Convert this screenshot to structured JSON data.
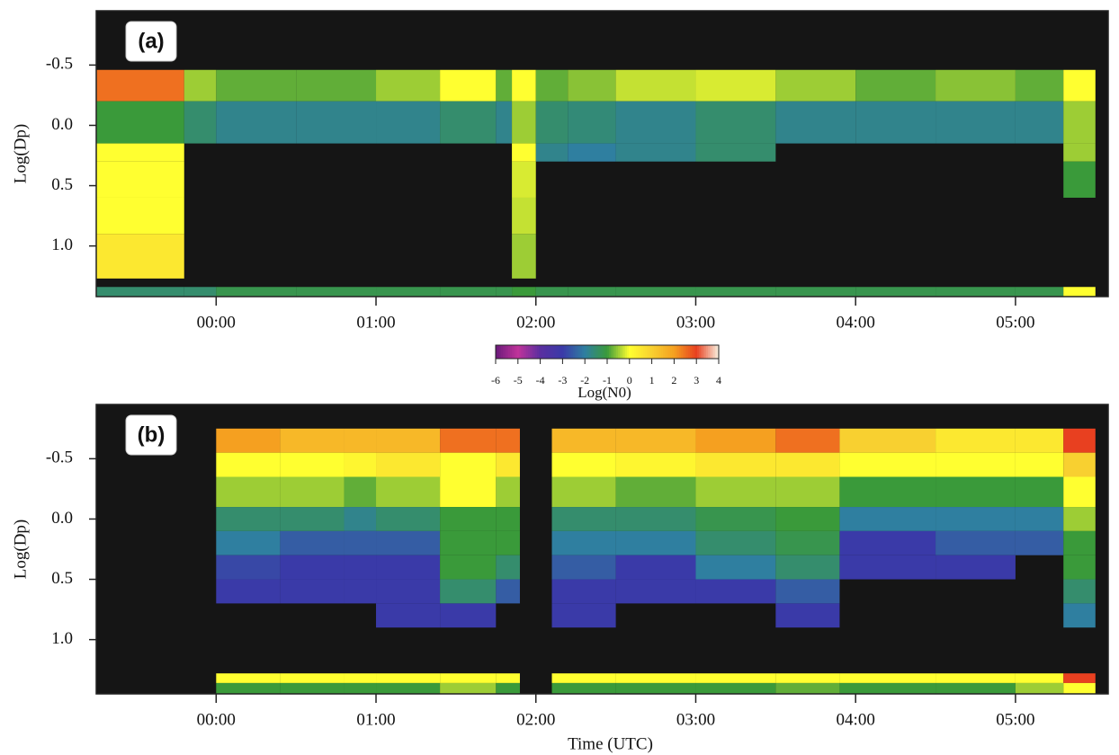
{
  "chart_data": [
    {
      "type": "heatmap",
      "panel_label": "(a)",
      "ylabel": "Log(Dp)",
      "inverted_y": true,
      "xlim": [
        -0.75,
        5.58
      ],
      "ylim": [
        -0.95,
        1.42
      ],
      "xticks": [
        {
          "value": 0,
          "label": "00:00"
        },
        {
          "value": 1,
          "label": "01:00"
        },
        {
          "value": 2,
          "label": "02:00"
        },
        {
          "value": 3,
          "label": "03:00"
        },
        {
          "value": 4,
          "label": "04:00"
        },
        {
          "value": 5,
          "label": "05:00"
        }
      ],
      "yticks": [
        -0.5,
        {
          "value": 0,
          "label": "0.0"
        },
        0.5,
        {
          "value": 1,
          "label": "1.0"
        }
      ],
      "x": [
        -0.75,
        -0.2,
        0.0,
        0.5,
        1.0,
        1.4,
        1.75,
        1.85,
        2.0,
        2.2,
        2.5,
        3.0,
        3.5,
        4.0,
        4.5,
        5.0,
        5.3,
        5.5
      ],
      "y": [
        -0.46,
        -0.2,
        0.15,
        0.3,
        0.6,
        0.9,
        1.27,
        1.34,
        1.42
      ],
      "z": [
        [
          2.5,
          -1,
          0,
          0,
          0,
          0.5,
          null,
          -1.5
        ],
        [
          -0.5,
          -1.5,
          null,
          null,
          null,
          null,
          null,
          -1.5
        ],
        [
          -0.8,
          -1.8,
          null,
          null,
          null,
          null,
          null,
          -1.2
        ],
        [
          -0.8,
          -1.8,
          null,
          null,
          null,
          null,
          null,
          -1.2
        ],
        [
          -0.5,
          -1.8,
          null,
          null,
          null,
          null,
          null,
          -1.2
        ],
        [
          0,
          -1.5,
          null,
          null,
          null,
          null,
          null,
          -1.2
        ],
        [
          -0.8,
          -1.8,
          null,
          null,
          null,
          null,
          null,
          -1.2
        ],
        [
          0,
          -0.5,
          0,
          -0.2,
          -0.3,
          -0.5,
          null,
          -1
        ],
        [
          -0.8,
          -1.5,
          -1.8,
          null,
          null,
          null,
          null,
          -1.2
        ],
        [
          -0.6,
          -1.6,
          -2,
          null,
          null,
          null,
          null,
          -1.2
        ],
        [
          -0.3,
          -1.8,
          -1.8,
          null,
          null,
          null,
          null,
          -1.2
        ],
        [
          -0.2,
          -1.5,
          -1.5,
          null,
          null,
          null,
          null,
          -1.2
        ],
        [
          -0.5,
          -1.8,
          null,
          null,
          null,
          null,
          null,
          -1.2
        ],
        [
          -0.8,
          -1.8,
          null,
          null,
          null,
          null,
          null,
          -1.2
        ],
        [
          -0.6,
          -1.8,
          null,
          null,
          null,
          null,
          null,
          -1.2
        ],
        [
          -0.8,
          -1.8,
          null,
          null,
          null,
          null,
          null,
          -1.2
        ],
        [
          0,
          -0.5,
          -0.5,
          -1,
          null,
          null,
          null,
          0
        ]
      ],
      "clim": [
        -6,
        4
      ],
      "colormap": [
        "#6a1a7a",
        "#c0339a",
        "#5a2fa0",
        "#3a3aa8",
        "#2f7fa0",
        "#3a9a3a",
        "#ffff30",
        "#f8d030",
        "#f5a020",
        "#e84020",
        "#f8f0e0"
      ],
      "colorbar_label": "Log(N0)",
      "cticks": [
        -6,
        -5,
        -4,
        -3,
        -2,
        -1,
        0,
        1,
        2,
        3,
        4
      ]
    },
    {
      "type": "heatmap",
      "panel_label": "(b)",
      "ylabel": "Log(Dp)",
      "xlabel": "Time (UTC)",
      "inverted_y": true,
      "xlim": [
        -0.75,
        5.58
      ],
      "ylim": [
        -0.95,
        1.45
      ],
      "xticks": [
        {
          "value": 0,
          "label": "00:00"
        },
        {
          "value": 1,
          "label": "01:00"
        },
        {
          "value": 2,
          "label": "02:00"
        },
        {
          "value": 3,
          "label": "03:00"
        },
        {
          "value": 4,
          "label": "04:00"
        },
        {
          "value": 5,
          "label": "05:00"
        }
      ],
      "yticks": [
        -0.5,
        {
          "value": 0,
          "label": "0.0"
        },
        0.5,
        {
          "value": 1,
          "label": "1.0"
        }
      ],
      "x": [
        0,
        0.4,
        0.8,
        1.0,
        1.4,
        1.75,
        1.9,
        2.1,
        2.5,
        3.0,
        3.5,
        3.9,
        4.5,
        5.0,
        5.3,
        5.5
      ],
      "y": [
        -0.75,
        -0.55,
        -0.35,
        -0.1,
        0.1,
        0.3,
        0.5,
        0.7,
        0.9,
        1.28,
        1.36,
        1.45
      ],
      "z": [
        [
          2,
          0,
          -0.5,
          -1.5,
          -2,
          -2.8,
          -3,
          null,
          null,
          0,
          -1
        ],
        [
          1.5,
          0,
          -0.5,
          -1.5,
          -2.5,
          -3,
          -3,
          null,
          null,
          0,
          -1
        ],
        [
          1.5,
          0.2,
          -0.8,
          -1.8,
          -2.5,
          -3,
          -3,
          null,
          null,
          0,
          -1
        ],
        [
          1.5,
          0.5,
          -0.5,
          -1.5,
          -2.5,
          -3,
          -3,
          -3,
          null,
          0,
          -1
        ],
        [
          2.5,
          0,
          0,
          -1,
          -1,
          -1,
          -1.5,
          -3,
          null,
          0,
          -0.5
        ],
        [
          2.5,
          0.5,
          -0.5,
          -1,
          -1,
          -1.5,
          -2.5,
          null,
          null,
          0,
          -1
        ],
        [
          null,
          null,
          null,
          null,
          null,
          null,
          null,
          null,
          null,
          null,
          null
        ],
        [
          1.5,
          0,
          -0.5,
          -1.5,
          -2,
          -2.5,
          -3,
          -3,
          null,
          0,
          -1
        ],
        [
          1.5,
          0.2,
          -0.8,
          -1.5,
          -2,
          -3,
          -3,
          null,
          null,
          0,
          -1
        ],
        [
          2,
          0.5,
          -0.5,
          -1.2,
          -1.5,
          -2,
          -3,
          null,
          null,
          0,
          -1
        ],
        [
          2.5,
          0.5,
          -0.5,
          -1,
          -1.2,
          -1.5,
          -2.5,
          -3,
          null,
          0,
          -0.8
        ],
        [
          1,
          0,
          -1,
          -2,
          -3,
          -3,
          null,
          null,
          null,
          0,
          -1
        ],
        [
          0.5,
          0,
          -1,
          -2,
          -2.5,
          -3,
          null,
          null,
          null,
          0,
          -1
        ],
        [
          0.5,
          0,
          -1,
          -2,
          -2.5,
          null,
          null,
          null,
          null,
          0,
          -0.5
        ],
        [
          3,
          1,
          0,
          -0.5,
          -1,
          -1,
          -1.5,
          -2,
          null,
          3,
          0
        ]
      ],
      "clim": [
        -6,
        4
      ],
      "colormap": [
        "#6a1a7a",
        "#c0339a",
        "#5a2fa0",
        "#3a3aa8",
        "#2f7fa0",
        "#3a9a3a",
        "#ffff30",
        "#f8d030",
        "#f5a020",
        "#e84020",
        "#f8f0e0"
      ]
    }
  ]
}
